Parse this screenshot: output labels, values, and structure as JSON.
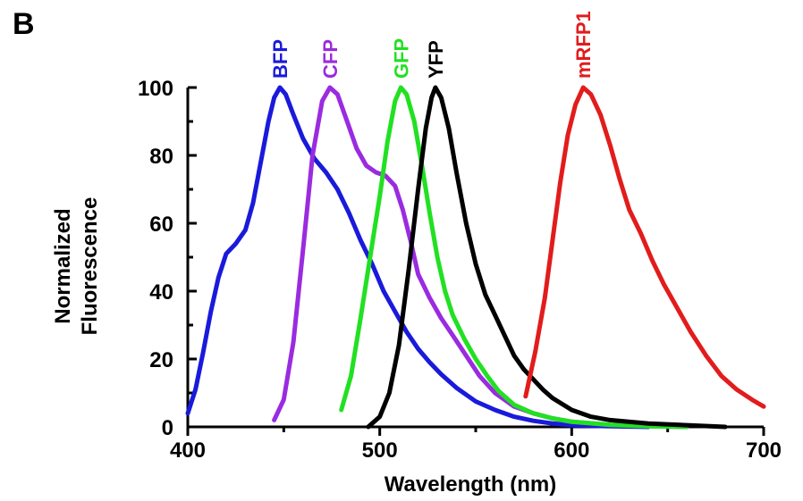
{
  "panel_label": "B",
  "chart_data": {
    "type": "line",
    "title": "",
    "xlabel": "Wavelength (nm)",
    "ylabel": [
      "Normalized",
      "Fluorescence"
    ],
    "xlim": [
      400,
      700
    ],
    "ylim": [
      0,
      100
    ],
    "x_ticks": [
      400,
      500,
      600,
      700
    ],
    "y_ticks": [
      0,
      20,
      40,
      60,
      80,
      100
    ],
    "grid": false,
    "legend": "series labels above peaks",
    "series": [
      {
        "name": "BFP",
        "color": "#1a1adb",
        "points": [
          [
            400,
            4
          ],
          [
            404,
            11
          ],
          [
            408,
            22
          ],
          [
            412,
            34
          ],
          [
            416,
            44
          ],
          [
            420,
            51
          ],
          [
            425,
            54
          ],
          [
            430,
            58
          ],
          [
            434,
            66
          ],
          [
            438,
            78
          ],
          [
            442,
            90
          ],
          [
            445,
            97
          ],
          [
            448,
            100
          ],
          [
            451,
            98
          ],
          [
            455,
            92
          ],
          [
            460,
            85
          ],
          [
            466,
            79
          ],
          [
            472,
            75
          ],
          [
            478,
            70
          ],
          [
            484,
            63
          ],
          [
            490,
            55
          ],
          [
            496,
            48
          ],
          [
            502,
            40
          ],
          [
            508,
            34
          ],
          [
            514,
            28
          ],
          [
            520,
            23
          ],
          [
            526,
            19
          ],
          [
            532,
            15.5
          ],
          [
            540,
            11.5
          ],
          [
            550,
            7.5
          ],
          [
            560,
            5
          ],
          [
            570,
            3
          ],
          [
            580,
            1.8
          ],
          [
            590,
            1
          ],
          [
            600,
            0.5
          ],
          [
            620,
            0.2
          ],
          [
            640,
            0
          ]
        ]
      },
      {
        "name": "CFP",
        "color": "#9a2be0",
        "points": [
          [
            445,
            2
          ],
          [
            450,
            8
          ],
          [
            455,
            25
          ],
          [
            460,
            52
          ],
          [
            465,
            80
          ],
          [
            470,
            96
          ],
          [
            474,
            100
          ],
          [
            478,
            98
          ],
          [
            483,
            90
          ],
          [
            488,
            82
          ],
          [
            493,
            77
          ],
          [
            498,
            75
          ],
          [
            503,
            74
          ],
          [
            508,
            71
          ],
          [
            512,
            64
          ],
          [
            516,
            55
          ],
          [
            520,
            45
          ],
          [
            526,
            38
          ],
          [
            532,
            32
          ],
          [
            538,
            27
          ],
          [
            545,
            21
          ],
          [
            552,
            15
          ],
          [
            560,
            10
          ],
          [
            570,
            6
          ],
          [
            580,
            4
          ],
          [
            590,
            2.5
          ],
          [
            600,
            1.5
          ],
          [
            620,
            0.6
          ],
          [
            640,
            0.2
          ],
          [
            660,
            0
          ]
        ]
      },
      {
        "name": "GFP",
        "color": "#22e022",
        "points": [
          [
            480,
            5
          ],
          [
            485,
            15
          ],
          [
            490,
            32
          ],
          [
            495,
            50
          ],
          [
            500,
            68
          ],
          [
            504,
            84
          ],
          [
            508,
            96
          ],
          [
            511,
            100
          ],
          [
            514,
            98
          ],
          [
            518,
            90
          ],
          [
            522,
            77
          ],
          [
            526,
            63
          ],
          [
            530,
            50
          ],
          [
            534,
            40
          ],
          [
            538,
            33
          ],
          [
            544,
            26
          ],
          [
            550,
            20
          ],
          [
            556,
            15
          ],
          [
            562,
            10.5
          ],
          [
            570,
            6.5
          ],
          [
            580,
            4
          ],
          [
            590,
            2.5
          ],
          [
            600,
            1.5
          ],
          [
            620,
            0.6
          ],
          [
            640,
            0.2
          ],
          [
            660,
            0
          ]
        ]
      },
      {
        "name": "YFP",
        "color": "#000000",
        "points": [
          [
            494,
            0
          ],
          [
            500,
            3
          ],
          [
            505,
            10
          ],
          [
            510,
            24
          ],
          [
            515,
            46
          ],
          [
            520,
            70
          ],
          [
            524,
            88
          ],
          [
            527,
            97
          ],
          [
            529,
            100
          ],
          [
            532,
            97
          ],
          [
            536,
            88
          ],
          [
            540,
            75
          ],
          [
            545,
            60
          ],
          [
            550,
            48
          ],
          [
            555,
            39
          ],
          [
            560,
            33
          ],
          [
            565,
            27
          ],
          [
            570,
            21
          ],
          [
            575,
            17
          ],
          [
            580,
            14
          ],
          [
            585,
            11
          ],
          [
            590,
            8.5
          ],
          [
            600,
            5
          ],
          [
            610,
            3
          ],
          [
            620,
            2
          ],
          [
            640,
            1
          ],
          [
            660,
            0.5
          ],
          [
            680,
            0
          ]
        ]
      },
      {
        "name": "mRFP1",
        "color": "#e21c1c",
        "points": [
          [
            576,
            9
          ],
          [
            581,
            22
          ],
          [
            586,
            38
          ],
          [
            590,
            55
          ],
          [
            594,
            72
          ],
          [
            598,
            86
          ],
          [
            602,
            95
          ],
          [
            606,
            100
          ],
          [
            610,
            98
          ],
          [
            615,
            92
          ],
          [
            620,
            83
          ],
          [
            625,
            73
          ],
          [
            630,
            64
          ],
          [
            636,
            57
          ],
          [
            642,
            49
          ],
          [
            648,
            42
          ],
          [
            655,
            35
          ],
          [
            662,
            28
          ],
          [
            670,
            21
          ],
          [
            678,
            15
          ],
          [
            686,
            11
          ],
          [
            694,
            8
          ],
          [
            700,
            6
          ]
        ]
      }
    ]
  }
}
